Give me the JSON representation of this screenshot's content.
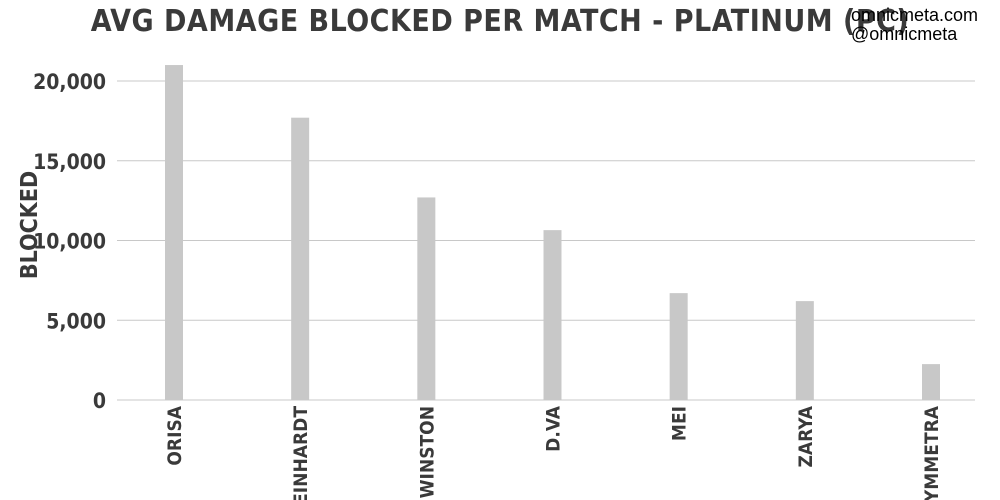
{
  "chart_data": {
    "type": "bar",
    "title": "AVG DAMAGE BLOCKED PER MATCH - PLATINUM (PC)",
    "xlabel": "",
    "ylabel": "BLOCKED",
    "categories": [
      "ORISA",
      "REINHARDT",
      "WINSTON",
      "D.VA",
      "MEI",
      "ZARYA",
      "SYMMETRA"
    ],
    "values": [
      21000,
      17700,
      12700,
      10650,
      6700,
      6200,
      2250
    ],
    "ylim": [
      0,
      20000
    ],
    "yticks": [
      0,
      5000,
      10000,
      15000,
      20000
    ],
    "ytick_labels": [
      "0",
      "5,000",
      "10,000",
      "15,000",
      "20,000"
    ],
    "grid": true,
    "bar_color": "#c8c8c8"
  },
  "credits": {
    "site": "omnicmeta.com",
    "handle": "@omnicmeta"
  }
}
